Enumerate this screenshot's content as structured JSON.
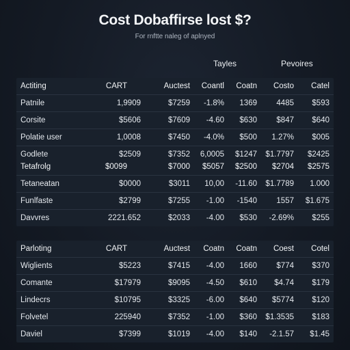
{
  "title": "Cost Dobaffirse lost $?",
  "subtitle": "For rnftte naleg of aplnyed",
  "column_groups": {
    "left": "Tayles",
    "right": "Pevoires"
  },
  "table1": {
    "header": [
      "Actiting",
      "CART",
      "Auctest",
      "Coantl",
      "Coatn",
      "Costo",
      "Catel"
    ],
    "rows": [
      [
        "Patnile",
        "1,9909",
        "$7259",
        "-1.8%",
        "1369",
        "4485",
        "$593"
      ],
      [
        "Corsite",
        "$5606",
        "$7609",
        "-4.60",
        "$630",
        "$847",
        "$640"
      ],
      [
        "Polatie user",
        "1,0008",
        "$7450",
        "-4.0%",
        "$500",
        "1.27%",
        "$005"
      ],
      [
        "Godlete",
        "$2509",
        "$7352",
        "6,0005",
        "$1247",
        "$1.7797",
        "$2425"
      ]
    ]
  },
  "table2": {
    "header": [
      "Tetafrolg",
      "$0099",
      "$7000",
      "$5057",
      "$2500",
      "$2704",
      "$2575"
    ],
    "rows": [
      [
        "Tetaneatan",
        "$0000",
        "$3011",
        "10,00",
        "-11.60",
        "$1.7789",
        "1.000"
      ],
      [
        "Funlfaste",
        "$2799",
        "$7255",
        "-1.00",
        "-1540",
        "1557",
        "$1.675"
      ],
      [
        "Davvres",
        "2221.652",
        "$2033",
        "-4.00",
        "$530",
        "-2.69%",
        "$255"
      ]
    ]
  },
  "table3": {
    "header": [
      "Parloting",
      "CART",
      "Auctest",
      "Coatn",
      "Coatn",
      "Coest",
      "Cotel"
    ],
    "rows": [
      [
        "Wiglients",
        "$5223",
        "$7415",
        "-4.00",
        "1660",
        "$774",
        "$370"
      ],
      [
        "Comante",
        "$17979",
        "$9095",
        "-4.50",
        "$610",
        "$4.74",
        "$179"
      ],
      [
        "Lindecrs",
        "$10795",
        "$3325",
        "-6.00",
        "$640",
        "$5774",
        "$120"
      ],
      [
        "Folvetel",
        "225940",
        "$7352",
        "-1.00",
        "$360",
        "$1.3535",
        "$183"
      ],
      [
        "Daviel",
        "$7399",
        "$1019",
        "-4.00",
        "$140",
        "-2.1.57",
        "$1.45"
      ]
    ]
  }
}
